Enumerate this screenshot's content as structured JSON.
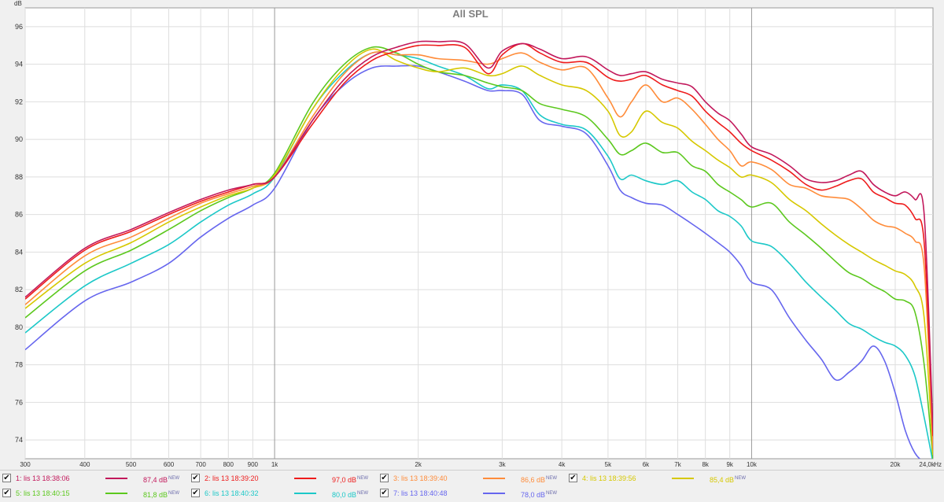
{
  "chart_data": {
    "type": "line",
    "title": "All SPL",
    "ylabel": "dB",
    "xunit": "Hz",
    "xscale": "log",
    "xlim": [
      300,
      24000
    ],
    "ylim": [
      73,
      97
    ],
    "grid": true,
    "x_tick_labels": [
      "300",
      "400",
      "500",
      "600",
      "700",
      "800",
      "900",
      "1k",
      "2k",
      "3k",
      "4k",
      "5k",
      "6k",
      "7k",
      "8k",
      "9k",
      "10k",
      "20k",
      "24,0k"
    ],
    "y_tick_labels": [
      "74",
      "76",
      "78",
      "80",
      "82",
      "84",
      "86",
      "88",
      "90",
      "92",
      "94",
      "96"
    ],
    "x": [
      300,
      400,
      500,
      600,
      700,
      800,
      900,
      1000,
      1200,
      1400,
      1600,
      1800,
      2000,
      2200,
      2500,
      2800,
      3000,
      3300,
      3600,
      4000,
      4500,
      5000,
      5300,
      5600,
      6000,
      6500,
      7000,
      7500,
      8000,
      8500,
      9000,
      9500,
      10000,
      11000,
      12000,
      13000,
      14000,
      15000,
      16000,
      17000,
      18000,
      19000,
      20000,
      21000,
      22000,
      23000,
      24000
    ],
    "series": [
      {
        "name": "1: lis 13 18:38:06",
        "color": "#c2185b",
        "values": [
          81.6,
          84.2,
          85.2,
          86.1,
          86.8,
          87.3,
          87.6,
          88.0,
          91.0,
          93.2,
          94.4,
          94.9,
          95.2,
          95.2,
          95.1,
          93.8,
          94.7,
          95.1,
          94.8,
          94.3,
          94.4,
          93.7,
          93.4,
          93.5,
          93.6,
          93.2,
          93.0,
          92.8,
          92.0,
          91.4,
          91.0,
          90.3,
          89.6,
          89.2,
          88.6,
          87.9,
          87.7,
          87.8,
          88.1,
          88.3,
          87.6,
          87.2,
          87.0,
          87.2,
          86.8,
          86.0,
          74.5
        ]
      },
      {
        "name": "2: lis 13 18:39:20",
        "color": "#ee1c1c",
        "values": [
          81.5,
          84.1,
          85.1,
          86.0,
          86.7,
          87.2,
          87.6,
          88.0,
          90.8,
          93.0,
          94.2,
          94.7,
          95.0,
          95.0,
          94.9,
          93.5,
          94.5,
          95.1,
          94.6,
          94.1,
          94.1,
          93.3,
          93.1,
          93.2,
          93.4,
          92.9,
          92.6,
          92.3,
          91.5,
          90.9,
          90.4,
          89.8,
          89.4,
          88.9,
          88.3,
          87.6,
          87.3,
          87.5,
          87.8,
          87.9,
          87.2,
          86.9,
          86.6,
          86.5,
          85.8,
          84.5,
          74.2
        ]
      },
      {
        "name": "3: lis 13 18:39:40",
        "color": "#ff8c3a",
        "values": [
          81.2,
          83.8,
          84.8,
          85.8,
          86.6,
          87.1,
          87.5,
          88.0,
          91.2,
          93.5,
          94.6,
          94.5,
          94.5,
          94.3,
          94.2,
          94.0,
          94.3,
          94.6,
          94.1,
          93.7,
          93.8,
          92.2,
          91.2,
          92.0,
          92.9,
          92.0,
          92.2,
          91.6,
          90.8,
          90.0,
          89.4,
          88.6,
          88.8,
          88.4,
          87.6,
          87.4,
          87.0,
          86.9,
          86.8,
          86.3,
          85.7,
          85.4,
          85.3,
          85.0,
          84.6,
          83.2,
          73.5
        ]
      },
      {
        "name": "4: lis 13 18:39:56",
        "color": "#d6c800",
        "values": [
          81.0,
          83.4,
          84.5,
          85.6,
          86.4,
          87.0,
          87.4,
          88.1,
          91.6,
          93.8,
          94.8,
          94.2,
          93.8,
          93.6,
          93.8,
          93.4,
          93.5,
          93.9,
          93.4,
          92.9,
          92.6,
          91.5,
          90.2,
          90.4,
          91.5,
          90.9,
          90.6,
          89.9,
          89.4,
          88.9,
          88.5,
          88.0,
          88.1,
          87.7,
          86.8,
          86.2,
          85.5,
          84.9,
          84.4,
          84.0,
          83.6,
          83.3,
          83.0,
          82.8,
          82.2,
          80.5,
          73.2
        ]
      },
      {
        "name": "5: lis 13 18:40:15",
        "color": "#5cc81e",
        "values": [
          80.5,
          83.0,
          84.1,
          85.2,
          86.2,
          86.9,
          87.4,
          88.2,
          91.9,
          94.0,
          94.9,
          94.6,
          94.0,
          93.6,
          93.4,
          93.0,
          92.8,
          92.6,
          91.9,
          91.6,
          91.2,
          90.0,
          89.2,
          89.4,
          89.8,
          89.3,
          89.3,
          88.6,
          88.3,
          87.6,
          87.2,
          86.8,
          86.4,
          86.6,
          85.6,
          84.9,
          84.2,
          83.5,
          82.9,
          82.6,
          82.2,
          81.9,
          81.5,
          81.4,
          80.8,
          78.0,
          73.0
        ]
      },
      {
        "name": "6: lis 13 18:40:32",
        "color": "#1cc8c8",
        "values": [
          79.7,
          82.2,
          83.4,
          84.4,
          85.6,
          86.5,
          87.1,
          88.0,
          91.6,
          93.6,
          94.6,
          94.5,
          94.3,
          93.9,
          93.4,
          92.7,
          92.9,
          92.6,
          91.3,
          90.8,
          90.5,
          89.1,
          87.9,
          88.1,
          87.8,
          87.6,
          87.8,
          87.2,
          86.8,
          86.2,
          85.9,
          85.4,
          84.6,
          84.3,
          83.4,
          82.4,
          81.6,
          80.9,
          80.2,
          79.9,
          79.5,
          79.2,
          79.0,
          78.5,
          77.4,
          75.2,
          72.8
        ]
      },
      {
        "name": "7: lis 13 18:40:48",
        "color": "#6666ee",
        "values": [
          78.8,
          81.4,
          82.4,
          83.4,
          84.8,
          85.8,
          86.5,
          87.4,
          91.0,
          92.9,
          93.8,
          93.9,
          93.9,
          93.6,
          93.1,
          92.6,
          92.6,
          92.4,
          91.0,
          90.7,
          90.3,
          88.6,
          87.3,
          86.9,
          86.6,
          86.5,
          86.0,
          85.5,
          85.0,
          84.5,
          84.0,
          83.3,
          82.4,
          82.0,
          80.5,
          79.3,
          78.3,
          77.2,
          77.6,
          78.2,
          79.0,
          78.2,
          76.5,
          74.5,
          73.3,
          72.8,
          72.5
        ]
      }
    ],
    "legend": [
      {
        "label": "1: lis 13 18:38:06",
        "color": "#c2185b",
        "level": "87,4 dB",
        "tag": "NEW"
      },
      {
        "label": "2: lis 13 18:39:20",
        "color": "#ee1c1c",
        "level": "97,0 dB",
        "tag": "NEW"
      },
      {
        "label": "3: lis 13 18:39:40",
        "color": "#ff8c3a",
        "level": "86,6 dB",
        "tag": "NEW"
      },
      {
        "label": "4: lis 13 18:39:56",
        "color": "#d6c800",
        "level": "85,4 dB",
        "tag": "NEW"
      },
      {
        "label": "5: lis 13 18:40:15",
        "color": "#5cc81e",
        "level": "81,8 dB",
        "tag": "NEW"
      },
      {
        "label": "6: lis 13 18:40:32",
        "color": "#1cc8c8",
        "level": "80,0 dB",
        "tag": "NEW"
      },
      {
        "label": "7: lis 13 18:40:48",
        "color": "#6666ee",
        "level": "78,0 dB",
        "tag": "NEW"
      }
    ]
  }
}
